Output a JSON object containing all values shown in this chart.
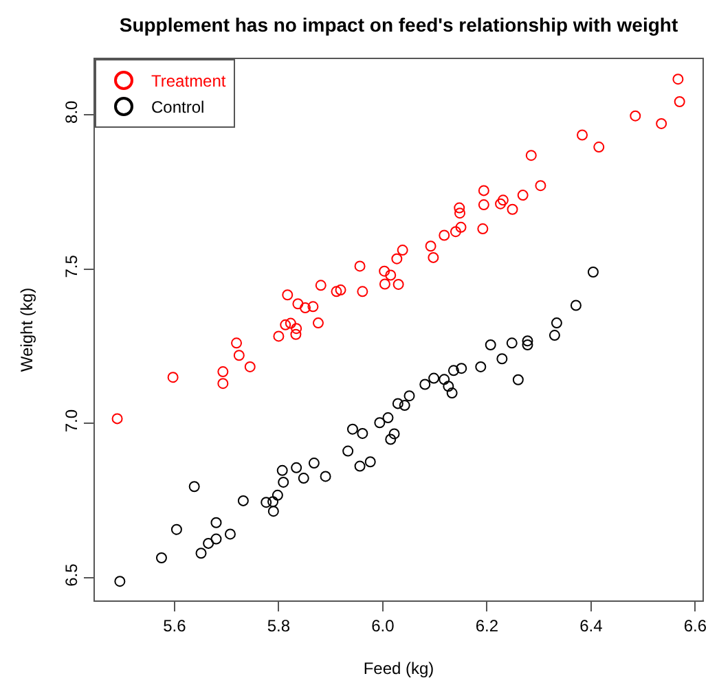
{
  "chart_data": {
    "type": "scatter",
    "title": "Supplement has no impact on feed's relationship with weight",
    "xlabel": "Feed (kg)",
    "ylabel": "Weight (kg)",
    "xlim": [
      5.447,
      6.614
    ],
    "ylim": [
      6.426,
      8.18
    ],
    "xticks": [
      5.6,
      5.8,
      {
        "value": 6,
        "label": "6.0"
      },
      6.2,
      6.4,
      6.6
    ],
    "yticks": [
      6.5,
      {
        "value": 7,
        "label": "7.0"
      },
      7.5,
      {
        "value": 8,
        "label": "8.0"
      }
    ],
    "grid": false,
    "legend": "top left",
    "marker": "circle",
    "series": [
      {
        "name": "Treatment",
        "color": "#ff0000",
        "x": [
          6.567,
          6.57,
          6.485,
          6.535,
          6.383,
          6.415,
          6.285,
          6.303,
          6.269,
          6.194,
          6.194,
          6.231,
          6.226,
          6.249,
          6.147,
          6.148,
          6.15,
          6.192,
          6.14,
          6.118,
          6.092,
          6.097,
          6.038,
          6.027,
          6.015,
          6.03,
          6.004,
          6.003,
          5.956,
          5.961,
          5.911,
          5.919,
          5.881,
          5.817,
          5.837,
          5.851,
          5.866,
          5.813,
          5.823,
          5.834,
          5.833,
          5.876,
          5.8,
          5.719,
          5.724,
          5.745,
          5.693,
          5.693,
          5.597,
          5.49
        ],
        "values": [
          8.115,
          8.042,
          7.996,
          7.971,
          7.934,
          7.895,
          7.868,
          7.77,
          7.739,
          7.754,
          7.708,
          7.723,
          7.711,
          7.693,
          7.698,
          7.681,
          7.635,
          7.63,
          7.621,
          7.609,
          7.574,
          7.537,
          7.561,
          7.533,
          7.48,
          7.45,
          7.451,
          7.493,
          7.509,
          7.427,
          7.427,
          7.432,
          7.447,
          7.416,
          7.387,
          7.374,
          7.378,
          7.319,
          7.324,
          7.307,
          7.288,
          7.325,
          7.282,
          7.26,
          7.22,
          7.183,
          7.167,
          7.129,
          7.149,
          7.015
        ]
      },
      {
        "name": "Control",
        "color": "#000000",
        "x": [
          6.404,
          6.371,
          6.334,
          6.33,
          6.278,
          6.278,
          6.248,
          6.207,
          6.229,
          6.26,
          6.188,
          6.151,
          6.136,
          6.118,
          6.098,
          6.126,
          6.133,
          6.081,
          6.051,
          6.029,
          6.042,
          6.01,
          6.015,
          6.022,
          5.994,
          5.942,
          5.961,
          5.933,
          5.956,
          5.976,
          5.89,
          5.868,
          5.848,
          5.834,
          5.807,
          5.809,
          5.798,
          5.789,
          5.776,
          5.79,
          5.732,
          5.638,
          5.68,
          5.707,
          5.68,
          5.665,
          5.651,
          5.604,
          5.575,
          5.495
        ],
        "values": [
          7.49,
          7.382,
          7.325,
          7.285,
          7.267,
          7.254,
          7.26,
          7.254,
          7.209,
          7.141,
          7.183,
          7.178,
          7.171,
          7.142,
          7.146,
          7.12,
          7.098,
          7.126,
          7.089,
          7.064,
          7.058,
          7.018,
          6.948,
          6.966,
          7.002,
          6.981,
          6.967,
          6.91,
          6.861,
          6.875,
          6.828,
          6.871,
          6.822,
          6.856,
          6.847,
          6.809,
          6.767,
          6.746,
          6.744,
          6.715,
          6.749,
          6.795,
          6.678,
          6.641,
          6.625,
          6.611,
          6.579,
          6.656,
          6.564,
          6.488
        ]
      }
    ]
  }
}
